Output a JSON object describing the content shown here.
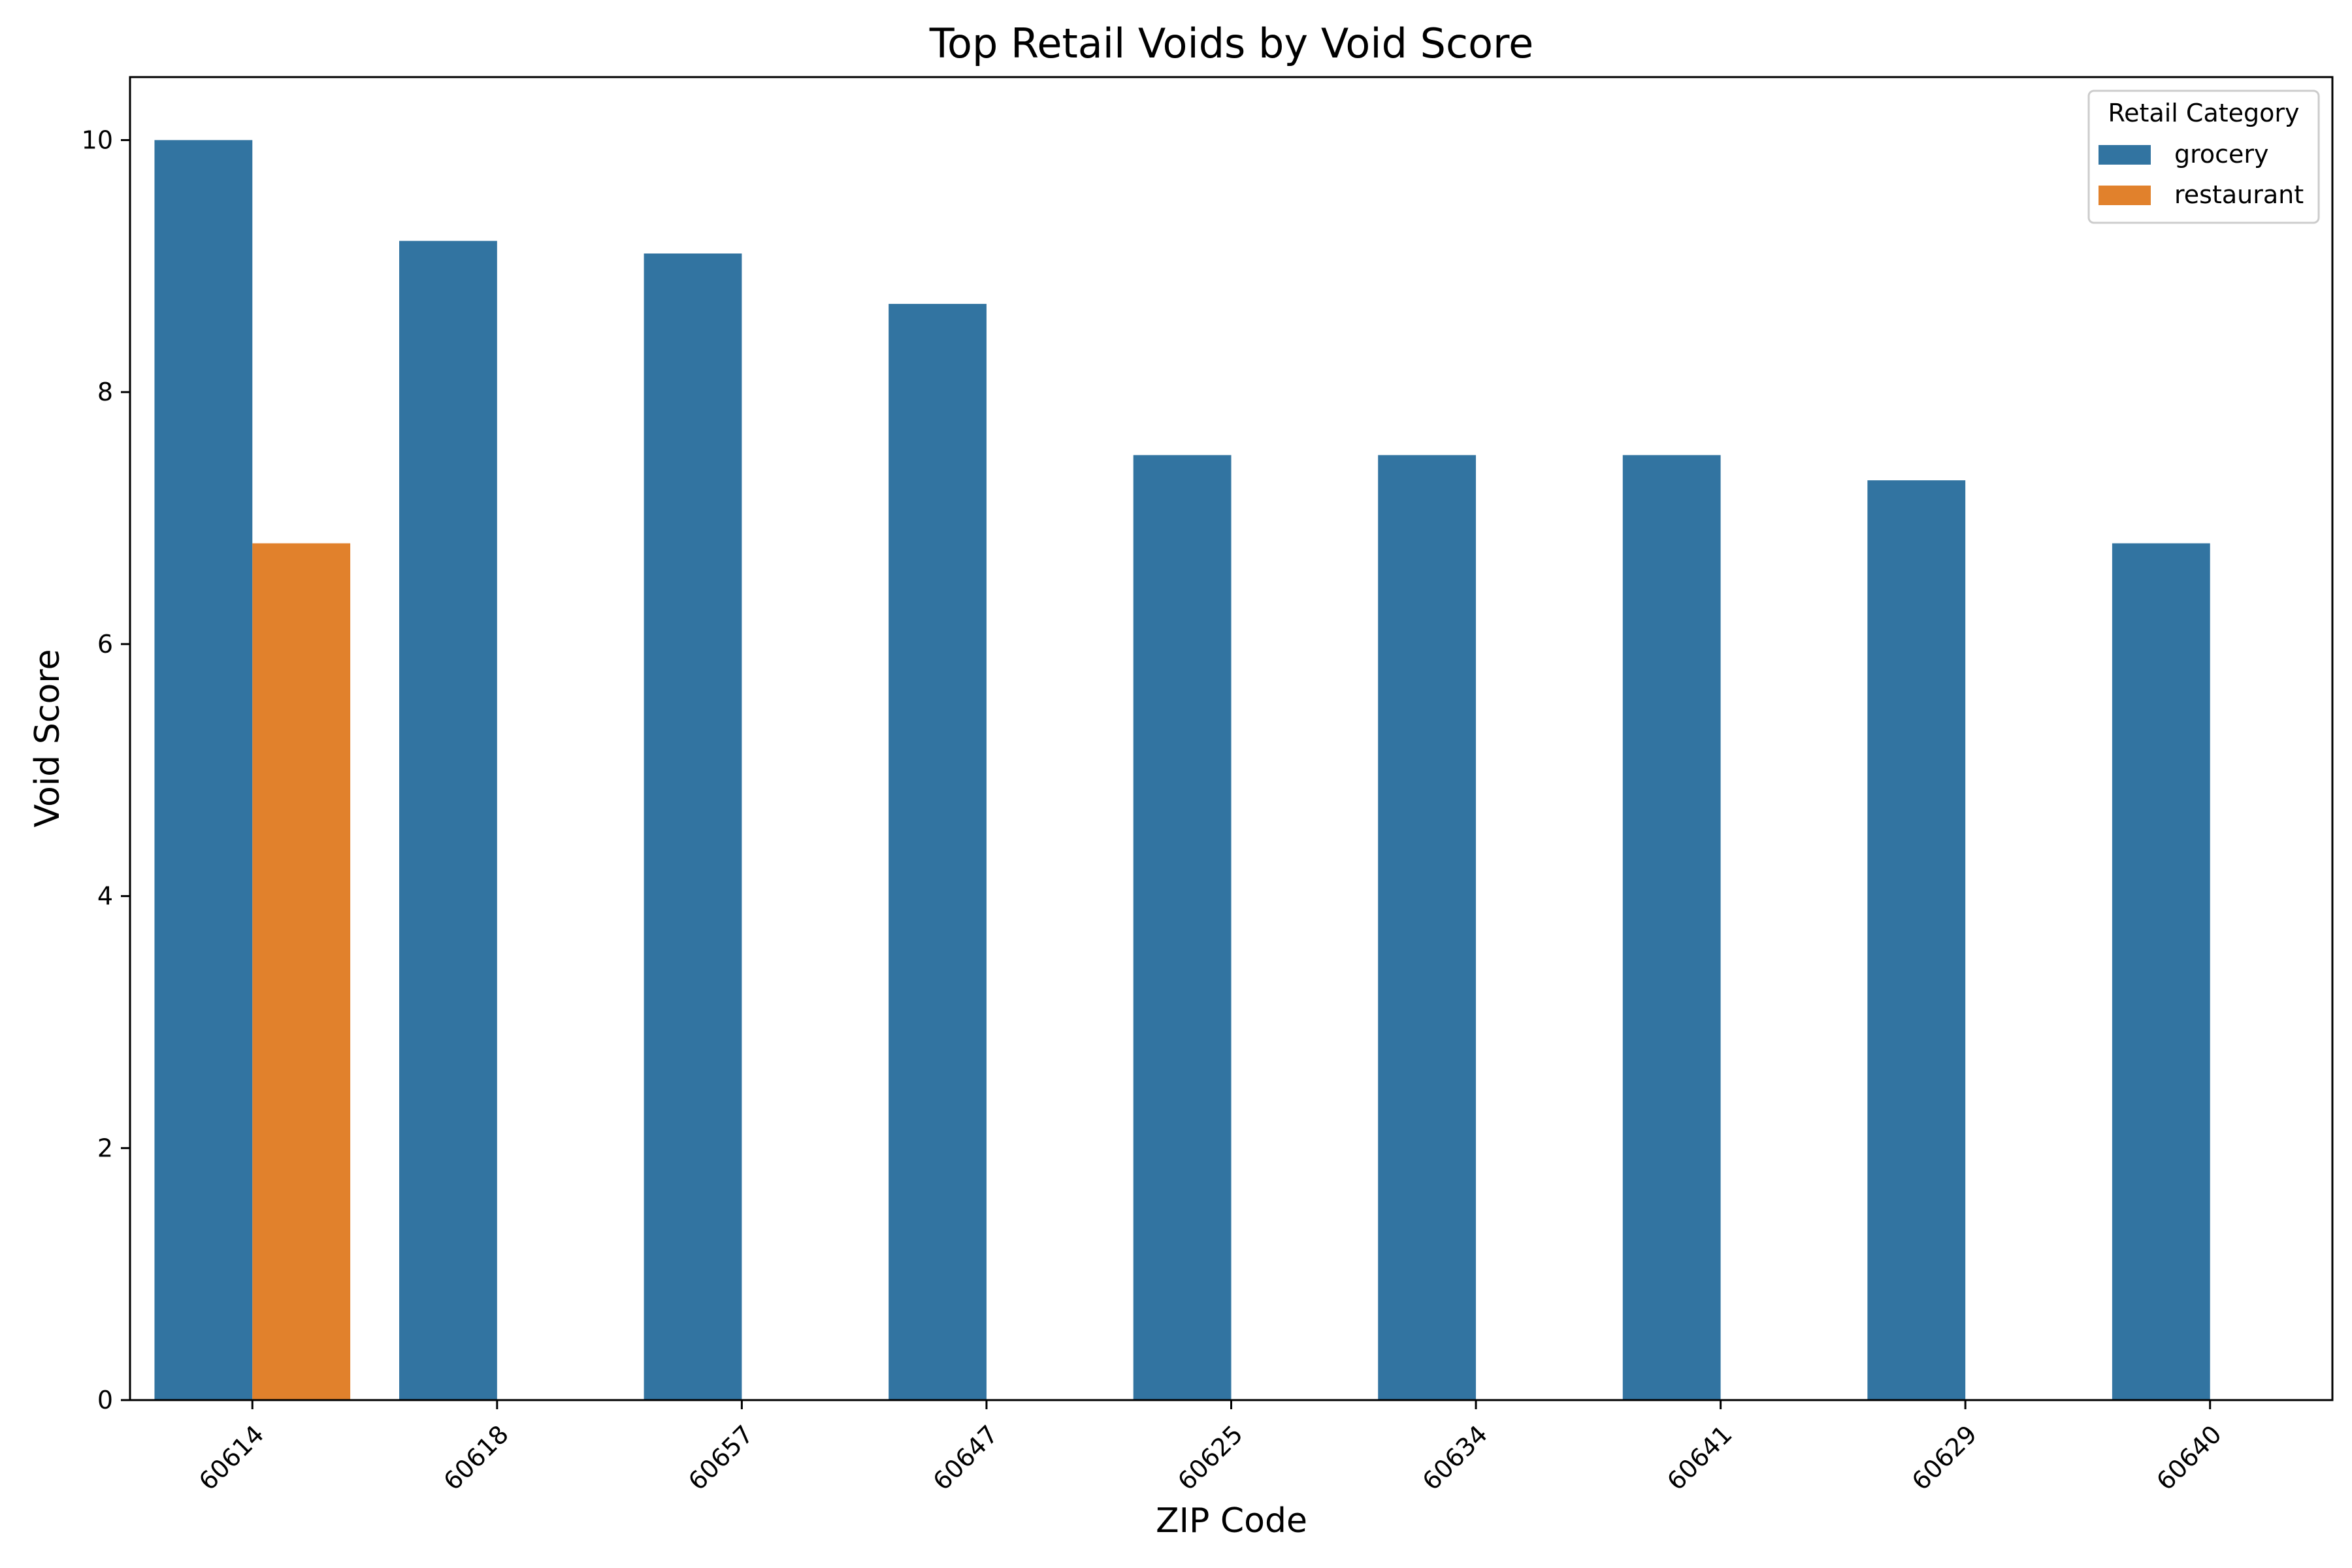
{
  "chart_data": {
    "type": "bar",
    "title": "Top Retail Voids by Void Score",
    "xlabel": "ZIP Code",
    "ylabel": "Void Score",
    "categories": [
      "60614",
      "60618",
      "60657",
      "60647",
      "60625",
      "60634",
      "60641",
      "60629",
      "60640"
    ],
    "series": [
      {
        "name": "grocery",
        "color": "#3274a1",
        "values": [
          10.0,
          9.2,
          9.1,
          8.7,
          7.5,
          7.5,
          7.5,
          7.3,
          6.8
        ]
      },
      {
        "name": "restaurant",
        "color": "#e1812c",
        "values": [
          6.8,
          null,
          null,
          null,
          null,
          null,
          null,
          null,
          null
        ]
      }
    ],
    "ylim": [
      0,
      10.5
    ],
    "yticks": [
      0,
      2,
      4,
      6,
      8,
      10
    ],
    "grid": false,
    "legend": {
      "title": "Retail Category",
      "placement": "top-right"
    }
  }
}
